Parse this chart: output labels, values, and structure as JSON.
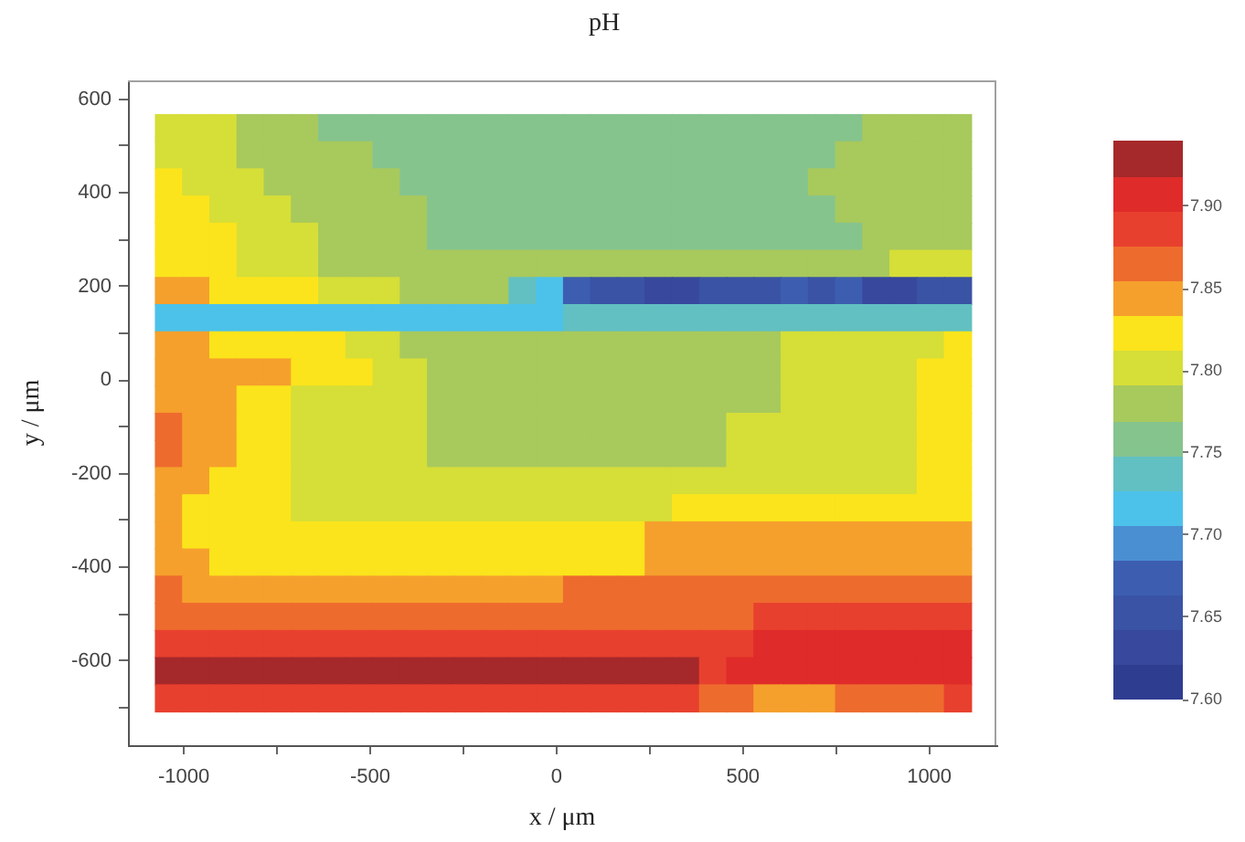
{
  "chart_data": {
    "type": "scatter",
    "title": "pH",
    "xlabel": "x / μm",
    "ylabel": "y / μm",
    "marker": "square",
    "xlim": [
      -1150,
      1180
    ],
    "xticks": [
      -1000,
      {
        "value": -750,
        "label": null
      },
      -500,
      {
        "value": -250,
        "label": null
      },
      0,
      {
        "value": 250,
        "label": null
      },
      500,
      {
        "value": 750,
        "label": null
      },
      1000
    ],
    "ylim": [
      -780,
      640
    ],
    "yticks": [
      {
        "value": -700,
        "label": null
      },
      -600,
      {
        "value": -500,
        "label": null
      },
      -400,
      {
        "value": -300,
        "label": null
      },
      -200,
      {
        "value": -100,
        "label": null
      },
      0,
      {
        "value": 100,
        "label": null
      },
      200,
      {
        "value": 300,
        "label": null
      },
      400,
      {
        "value": 500,
        "label": null
      },
      600
    ],
    "clim": [
      7.6,
      7.94
    ],
    "cticks": [
      {
        "value": 7.6,
        "label": "7.60"
      },
      7.65,
      {
        "value": 7.7,
        "label": "7.70"
      },
      7.75,
      {
        "value": 7.8,
        "label": "7.80"
      },
      7.85,
      {
        "value": 7.9,
        "label": "7.90"
      }
    ],
    "x": [
      -1040,
      -967,
      -894,
      -821,
      -748,
      -675,
      -602,
      -529,
      -456,
      -383,
      -310,
      -237,
      -164,
      -91,
      -18,
      55,
      128,
      201,
      274,
      347,
      420,
      493,
      566,
      639,
      712,
      785,
      858,
      931,
      1004,
      1077,
      -1040,
      -967,
      -894,
      -821,
      -748,
      -675,
      -602,
      -529,
      -456,
      -383,
      -310,
      -237,
      -164,
      -91,
      -18,
      55,
      128,
      201,
      274,
      347,
      420,
      493,
      566,
      639,
      712,
      785,
      858,
      931,
      1004,
      1077,
      -1040,
      -967,
      -894,
      -821,
      -748,
      -675,
      -602,
      -529,
      -456,
      -383,
      -310,
      -237,
      -164,
      -91,
      -18,
      55,
      128,
      201,
      274,
      347,
      420,
      493,
      566,
      639,
      712,
      785,
      858,
      931,
      1004,
      1077,
      -1040,
      -967,
      -894,
      -821,
      -748,
      -675,
      -602,
      -529,
      -456,
      -383,
      -310,
      -237,
      -164,
      -91,
      -18,
      55,
      128,
      201,
      274,
      347,
      420,
      493,
      566,
      639,
      712,
      785,
      858,
      931,
      1004,
      1077,
      -1040,
      -967,
      -894,
      -821,
      -748,
      -675,
      -602,
      -529,
      -456,
      -383,
      -310,
      -237,
      -164,
      -91,
      -18,
      55,
      128,
      201,
      274,
      347,
      420,
      493,
      566,
      639,
      712,
      785,
      858,
      931,
      1004,
      1077,
      -1040,
      -967,
      -894,
      -821,
      -748,
      -675,
      -602,
      -529,
      -456,
      -383,
      -310,
      -237,
      -164,
      -91,
      -18,
      55,
      128,
      201,
      274,
      347,
      420,
      493,
      566,
      639,
      712,
      785,
      858,
      931,
      1004,
      1077,
      -1040,
      -967,
      -894,
      -821,
      -748,
      -675,
      -602,
      -529,
      -456,
      -383,
      -310,
      -237,
      -164,
      -91,
      -18,
      55,
      128,
      201,
      274,
      347,
      420,
      493,
      566,
      639,
      712,
      785,
      858,
      931,
      1004,
      1077,
      -1040,
      -967,
      -894,
      -821,
      -748,
      -675,
      -602,
      -529,
      -456,
      -383,
      -310,
      -237,
      -164,
      -91,
      -18,
      55,
      128,
      201,
      274,
      347,
      420,
      493,
      566,
      639,
      712,
      785,
      858,
      931,
      1004,
      1077,
      -1040,
      -967,
      -894,
      -821,
      -748,
      -675,
      -602,
      -529,
      -456,
      -383,
      -310,
      -237,
      -164,
      -91,
      -18,
      55,
      128,
      201,
      274,
      347,
      420,
      493,
      566,
      639,
      712,
      785,
      858,
      931,
      1004,
      1077,
      -1040,
      -967,
      -894,
      -821,
      -748,
      -675,
      -602,
      -529,
      -456,
      -383,
      -310,
      -237,
      -164,
      -91,
      -18,
      55,
      128,
      201,
      274,
      347,
      420,
      493,
      566,
      639,
      712,
      785,
      858,
      931,
      1004,
      1077,
      -1040,
      -967,
      -894,
      -821,
      -748,
      -675,
      -602,
      -529,
      -456,
      -383,
      -310,
      -237,
      -164,
      -91,
      -18,
      55,
      128,
      201,
      274,
      347,
      420,
      493,
      566,
      639,
      712,
      785,
      858,
      931,
      1004,
      1077,
      -1040,
      -967,
      -894,
      -821,
      -748,
      -675,
      -602,
      -529,
      -456,
      -383,
      -310,
      -237,
      -164,
      -91,
      -18,
      55,
      128,
      201,
      274,
      347,
      420,
      493,
      566,
      639,
      712,
      785,
      858,
      931,
      1004,
      1077,
      -1040,
      -967,
      -894,
      -821,
      -748,
      -675,
      -602,
      -529,
      -456,
      -383,
      -310,
      -237,
      -164,
      -91,
      -18,
      55,
      128,
      201,
      274,
      347,
      420,
      493,
      566,
      639,
      712,
      785,
      858,
      931,
      1004,
      1077,
      -1040,
      -967,
      -894,
      -821,
      -748,
      -675,
      -602,
      -529,
      -456,
      -383,
      -310,
      -237,
      -164,
      -91,
      -18,
      55,
      128,
      201,
      274,
      347,
      420,
      493,
      566,
      639,
      712,
      785,
      858,
      931,
      1004,
      1077,
      -1040,
      -967,
      -894,
      -821,
      -748,
      -675,
      -602,
      -529,
      -456,
      -383,
      -310,
      -237,
      -164,
      -91,
      -18,
      55,
      128,
      201,
      274,
      347,
      420,
      493,
      566,
      639,
      712,
      785,
      858,
      931,
      1004,
      1077,
      -1040,
      -967,
      -894,
      -821,
      -748,
      -675,
      -602,
      -529,
      -456,
      -383,
      -310,
      -237,
      -164,
      -91,
      -18,
      55,
      128,
      201,
      274,
      347,
      420,
      493,
      566,
      639,
      712,
      785,
      858,
      931,
      1004,
      1077,
      -1040,
      -967,
      -894,
      -821,
      -748,
      -675,
      -602,
      -529,
      -456,
      -383,
      -310,
      -237,
      -164,
      -91,
      -18,
      55,
      128,
      201,
      274,
      347,
      420,
      493,
      566,
      639,
      712,
      785,
      858,
      931,
      1004,
      1077,
      -1040,
      -967,
      -894,
      -821,
      -748,
      -675,
      -602,
      -529,
      -456,
      -383,
      -310,
      -237,
      -164,
      -91,
      -18,
      55,
      128,
      201,
      274,
      347,
      420,
      493,
      566,
      639,
      712,
      785,
      858,
      931,
      1004,
      1077,
      -1040,
      -967,
      -894,
      -821,
      -748,
      -675,
      -602,
      -529,
      -456,
      -383,
      -310,
      -237,
      -164,
      -91,
      -18,
      55,
      128,
      201,
      274,
      347,
      420,
      493,
      566,
      639,
      712,
      785,
      858,
      931,
      1004,
      1077,
      -1040,
      -967,
      -894,
      -821,
      -748,
      -675,
      -602,
      -529,
      -456,
      -383,
      -310,
      -237,
      -164,
      -91,
      -18,
      55,
      128,
      201,
      274,
      347,
      420,
      493,
      566,
      639,
      712,
      785,
      858,
      931,
      1004,
      1077,
      -1040,
      -967,
      -894,
      -821,
      -748,
      -675,
      -602,
      -529,
      -456,
      -383,
      -310,
      -237,
      -164,
      -91,
      -18,
      55,
      128,
      201,
      274,
      347,
      420,
      493,
      566,
      639,
      712,
      785,
      858,
      931,
      1004,
      1077,
      -1040,
      -967,
      -894,
      -821,
      -748,
      -675,
      -602,
      -529,
      -456,
      -383,
      -310,
      -237,
      -164,
      -91,
      -18,
      55,
      128,
      201,
      274,
      347,
      420,
      493,
      566,
      639,
      712,
      785,
      858,
      931,
      1004,
      1077
    ],
    "values": [
      538,
      538,
      538,
      538,
      538,
      538,
      538,
      538,
      538,
      538,
      538,
      538,
      538,
      538,
      538,
      538,
      538,
      538,
      538,
      538,
      538,
      538,
      538,
      538,
      538,
      538,
      538,
      538,
      538,
      538,
      480,
      480,
      480,
      480,
      480,
      480,
      480,
      480,
      480,
      480,
      480,
      480,
      480,
      480,
      480,
      480,
      480,
      480,
      480,
      480,
      480,
      480,
      480,
      480,
      480,
      480,
      480,
      480,
      480,
      480,
      422,
      422,
      422,
      422,
      422,
      422,
      422,
      422,
      422,
      422,
      422,
      422,
      422,
      422,
      422,
      422,
      422,
      422,
      422,
      422,
      422,
      422,
      422,
      422,
      422,
      422,
      422,
      422,
      422,
      422,
      364,
      364,
      364,
      364,
      364,
      364,
      364,
      364,
      364,
      364,
      364,
      364,
      364,
      364,
      364,
      364,
      364,
      364,
      364,
      364,
      364,
      364,
      364,
      364,
      364,
      364,
      364,
      364,
      364,
      364,
      306,
      306,
      306,
      306,
      306,
      306,
      306,
      306,
      306,
      306,
      306,
      306,
      306,
      306,
      306,
      306,
      306,
      306,
      306,
      306,
      306,
      306,
      306,
      306,
      306,
      306,
      306,
      306,
      306,
      306,
      248,
      248,
      248,
      248,
      248,
      248,
      248,
      248,
      248,
      248,
      248,
      248,
      248,
      248,
      248,
      248,
      248,
      248,
      248,
      248,
      248,
      248,
      248,
      248,
      248,
      248,
      248,
      248,
      248,
      248,
      190,
      190,
      190,
      190,
      190,
      190,
      190,
      190,
      190,
      190,
      190,
      190,
      190,
      190,
      190,
      190,
      190,
      190,
      190,
      190,
      190,
      190,
      190,
      190,
      190,
      190,
      190,
      190,
      190,
      190,
      132,
      132,
      132,
      132,
      132,
      132,
      132,
      132,
      132,
      132,
      132,
      132,
      132,
      132,
      132,
      132,
      132,
      132,
      132,
      132,
      132,
      132,
      132,
      132,
      132,
      132,
      132,
      132,
      132,
      132,
      74,
      74,
      74,
      74,
      74,
      74,
      74,
      74,
      74,
      74,
      74,
      74,
      74,
      74,
      74,
      74,
      74,
      74,
      74,
      74,
      74,
      74,
      74,
      74,
      74,
      74,
      74,
      74,
      74,
      74,
      16,
      16,
      16,
      16,
      16,
      16,
      16,
      16,
      16,
      16,
      16,
      16,
      16,
      16,
      16,
      16,
      16,
      16,
      16,
      16,
      16,
      16,
      16,
      16,
      16,
      16,
      16,
      16,
      16,
      16,
      -42,
      -42,
      -42,
      -42,
      -42,
      -42,
      -42,
      -42,
      -42,
      -42,
      -42,
      -42,
      -42,
      -42,
      -42,
      -42,
      -42,
      -42,
      -42,
      -42,
      -42,
      -42,
      -42,
      -42,
      -42,
      -42,
      -42,
      -42,
      -42,
      -42,
      -100,
      -100,
      -100,
      -100,
      -100,
      -100,
      -100,
      -100,
      -100,
      -100,
      -100,
      -100,
      -100,
      -100,
      -100,
      -100,
      -100,
      -100,
      -100,
      -100,
      -100,
      -100,
      -100,
      -100,
      -100,
      -100,
      -100,
      -100,
      -100,
      -100,
      -158,
      -158,
      -158,
      -158,
      -158,
      -158,
      -158,
      -158,
      -158,
      -158,
      -158,
      -158,
      -158,
      -158,
      -158,
      -158,
      -158,
      -158,
      -158,
      -158,
      -158,
      -158,
      -158,
      -158,
      -158,
      -158,
      -158,
      -158,
      -158,
      -158,
      -216,
      -216,
      -216,
      -216,
      -216,
      -216,
      -216,
      -216,
      -216,
      -216,
      -216,
      -216,
      -216,
      -216,
      -216,
      -216,
      -216,
      -216,
      -216,
      -216,
      -216,
      -216,
      -216,
      -216,
      -216,
      -216,
      -216,
      -216,
      -216,
      -216,
      -274,
      -274,
      -274,
      -274,
      -274,
      -274,
      -274,
      -274,
      -274,
      -274,
      -274,
      -274,
      -274,
      -274,
      -274,
      -274,
      -274,
      -274,
      -274,
      -274,
      -274,
      -274,
      -274,
      -274,
      -274,
      -274,
      -274,
      -274,
      -274,
      -274,
      -332,
      -332,
      -332,
      -332,
      -332,
      -332,
      -332,
      -332,
      -332,
      -332,
      -332,
      -332,
      -332,
      -332,
      -332,
      -332,
      -332,
      -332,
      -332,
      -332,
      -332,
      -332,
      -332,
      -332,
      -332,
      -332,
      -332,
      -332,
      -332,
      -332,
      -390,
      -390,
      -390,
      -390,
      -390,
      -390,
      -390,
      -390,
      -390,
      -390,
      -390,
      -390,
      -390,
      -390,
      -390,
      -390,
      -390,
      -390,
      -390,
      -390,
      -390,
      -390,
      -390,
      -390,
      -390,
      -390,
      -390,
      -390,
      -390,
      -390,
      -448,
      -448,
      -448,
      -448,
      -448,
      -448,
      -448,
      -448,
      -448,
      -448,
      -448,
      -448,
      -448,
      -448,
      -448,
      -448,
      -448,
      -448,
      -448,
      -448,
      -448,
      -448,
      -448,
      -448,
      -448,
      -448,
      -448,
      -448,
      -448,
      -448,
      -506,
      -506,
      -506,
      -506,
      -506,
      -506,
      -506,
      -506,
      -506,
      -506,
      -506,
      -506,
      -506,
      -506,
      -506,
      -506,
      -506,
      -506,
      -506,
      -506,
      -506,
      -506,
      -506,
      -506,
      -506,
      -506,
      -506,
      -506,
      -506,
      -506,
      -564,
      -564,
      -564,
      -564,
      -564,
      -564,
      -564,
      -564,
      -564,
      -564,
      -564,
      -564,
      -564,
      -564,
      -564,
      -564,
      -564,
      -564,
      -564,
      -564,
      -564,
      -564,
      -564,
      -564,
      -564,
      -564,
      -564,
      -564,
      -564,
      -564,
      -622,
      -622,
      -622,
      -622,
      -622,
      -622,
      -622,
      -622,
      -622,
      -622,
      -622,
      -622,
      -622,
      -622,
      -622,
      -622,
      -622,
      -622,
      -622,
      -622,
      -622,
      -622,
      -622,
      -622,
      -622,
      -622,
      -622,
      -622,
      -622,
      -622,
      -680,
      -680,
      -680,
      -680,
      -680,
      -680,
      -680,
      -680,
      -680,
      -680,
      -680,
      -680,
      -680,
      -680,
      -680,
      -680,
      -680,
      -680,
      -680,
      -680,
      -680,
      -680,
      -680,
      -680,
      -680,
      -680,
      -680,
      -680,
      -680,
      -680
    ],
    "cvalues": [
      7.8,
      7.8,
      7.8,
      7.78,
      7.78,
      7.78,
      7.76,
      7.76,
      7.76,
      7.76,
      7.76,
      7.76,
      7.76,
      7.76,
      7.76,
      7.76,
      7.76,
      7.76,
      7.76,
      7.76,
      7.76,
      7.76,
      7.76,
      7.76,
      7.76,
      7.76,
      7.78,
      7.78,
      7.78,
      7.78,
      7.8,
      7.8,
      7.8,
      7.78,
      7.78,
      7.78,
      7.78,
      7.78,
      7.76,
      7.76,
      7.76,
      7.76,
      7.76,
      7.76,
      7.76,
      7.76,
      7.76,
      7.76,
      7.76,
      7.76,
      7.76,
      7.76,
      7.76,
      7.76,
      7.76,
      7.78,
      7.78,
      7.78,
      7.78,
      7.78,
      7.82,
      7.8,
      7.8,
      7.8,
      7.78,
      7.78,
      7.78,
      7.78,
      7.78,
      7.76,
      7.76,
      7.76,
      7.76,
      7.76,
      7.76,
      7.76,
      7.76,
      7.76,
      7.76,
      7.76,
      7.76,
      7.76,
      7.76,
      7.76,
      7.78,
      7.78,
      7.78,
      7.78,
      7.78,
      7.78,
      7.82,
      7.82,
      7.8,
      7.8,
      7.8,
      7.78,
      7.78,
      7.78,
      7.78,
      7.78,
      7.76,
      7.76,
      7.76,
      7.76,
      7.76,
      7.76,
      7.76,
      7.76,
      7.76,
      7.76,
      7.76,
      7.76,
      7.76,
      7.76,
      7.76,
      7.78,
      7.78,
      7.78,
      7.78,
      7.78,
      7.82,
      7.82,
      7.82,
      7.8,
      7.8,
      7.8,
      7.78,
      7.78,
      7.78,
      7.78,
      7.76,
      7.76,
      7.76,
      7.76,
      7.76,
      7.76,
      7.76,
      7.76,
      7.76,
      7.76,
      7.76,
      7.76,
      7.76,
      7.76,
      7.76,
      7.76,
      7.78,
      7.78,
      7.78,
      7.78,
      7.82,
      7.82,
      7.82,
      7.8,
      7.8,
      7.8,
      7.78,
      7.78,
      7.78,
      7.78,
      7.78,
      7.78,
      7.78,
      7.78,
      7.78,
      7.78,
      7.78,
      7.78,
      7.78,
      7.78,
      7.78,
      7.78,
      7.78,
      7.78,
      7.78,
      7.78,
      7.78,
      7.8,
      7.8,
      7.8,
      7.84,
      7.84,
      7.82,
      7.82,
      7.82,
      7.82,
      7.8,
      7.8,
      7.8,
      7.78,
      7.78,
      7.78,
      7.78,
      7.74,
      7.72,
      7.67,
      7.65,
      7.65,
      7.63,
      7.63,
      7.65,
      7.65,
      7.65,
      7.67,
      7.65,
      7.67,
      7.63,
      7.63,
      7.65,
      7.65,
      7.72,
      7.72,
      7.72,
      7.72,
      7.72,
      7.72,
      7.72,
      7.72,
      7.72,
      7.72,
      7.72,
      7.72,
      7.72,
      7.72,
      7.72,
      7.74,
      7.74,
      7.74,
      7.74,
      7.74,
      7.74,
      7.74,
      7.74,
      7.74,
      7.74,
      7.74,
      7.74,
      7.74,
      7.74,
      7.74,
      7.84,
      7.84,
      7.82,
      7.82,
      7.82,
      7.82,
      7.82,
      7.8,
      7.8,
      7.78,
      7.78,
      7.78,
      7.78,
      7.78,
      7.78,
      7.78,
      7.78,
      7.78,
      7.78,
      7.78,
      7.78,
      7.78,
      7.78,
      7.8,
      7.8,
      7.8,
      7.8,
      7.8,
      7.8,
      7.82,
      7.84,
      7.84,
      7.84,
      7.84,
      7.84,
      7.82,
      7.82,
      7.82,
      7.8,
      7.8,
      7.78,
      7.78,
      7.78,
      7.78,
      7.78,
      7.78,
      7.78,
      7.78,
      7.78,
      7.78,
      7.78,
      7.78,
      7.78,
      7.8,
      7.8,
      7.8,
      7.8,
      7.8,
      7.82,
      7.82,
      7.84,
      7.84,
      7.84,
      7.82,
      7.82,
      7.8,
      7.8,
      7.8,
      7.8,
      7.8,
      7.78,
      7.78,
      7.78,
      7.78,
      7.78,
      7.78,
      7.78,
      7.78,
      7.78,
      7.78,
      7.78,
      7.78,
      7.78,
      7.8,
      7.8,
      7.8,
      7.8,
      7.8,
      7.82,
      7.82,
      7.87,
      7.84,
      7.84,
      7.82,
      7.82,
      7.8,
      7.8,
      7.8,
      7.8,
      7.8,
      7.78,
      7.78,
      7.78,
      7.78,
      7.78,
      7.78,
      7.78,
      7.78,
      7.78,
      7.78,
      7.78,
      7.8,
      7.8,
      7.8,
      7.8,
      7.8,
      7.8,
      7.8,
      7.82,
      7.82,
      7.87,
      7.84,
      7.84,
      7.82,
      7.82,
      7.8,
      7.8,
      7.8,
      7.8,
      7.8,
      7.78,
      7.78,
      7.78,
      7.78,
      7.78,
      7.78,
      7.78,
      7.78,
      7.78,
      7.78,
      7.78,
      7.8,
      7.8,
      7.8,
      7.8,
      7.8,
      7.8,
      7.8,
      7.82,
      7.82,
      7.84,
      7.84,
      7.82,
      7.82,
      7.82,
      7.8,
      7.8,
      7.8,
      7.8,
      7.8,
      7.8,
      7.8,
      7.8,
      7.8,
      7.8,
      7.8,
      7.8,
      7.8,
      7.8,
      7.8,
      7.8,
      7.8,
      7.8,
      7.8,
      7.8,
      7.8,
      7.8,
      7.8,
      7.82,
      7.82,
      7.84,
      7.82,
      7.82,
      7.82,
      7.82,
      7.8,
      7.8,
      7.8,
      7.8,
      7.8,
      7.8,
      7.8,
      7.8,
      7.8,
      7.8,
      7.8,
      7.8,
      7.8,
      7.8,
      7.82,
      7.82,
      7.82,
      7.82,
      7.82,
      7.82,
      7.82,
      7.82,
      7.82,
      7.82,
      7.82,
      7.84,
      7.82,
      7.82,
      7.82,
      7.82,
      7.82,
      7.82,
      7.82,
      7.82,
      7.82,
      7.82,
      7.82,
      7.82,
      7.82,
      7.82,
      7.82,
      7.82,
      7.82,
      7.84,
      7.84,
      7.84,
      7.84,
      7.84,
      7.84,
      7.84,
      7.84,
      7.84,
      7.84,
      7.84,
      7.84,
      7.84,
      7.84,
      7.82,
      7.82,
      7.82,
      7.82,
      7.82,
      7.82,
      7.82,
      7.82,
      7.82,
      7.82,
      7.82,
      7.82,
      7.82,
      7.82,
      7.82,
      7.82,
      7.84,
      7.84,
      7.84,
      7.84,
      7.84,
      7.84,
      7.84,
      7.84,
      7.84,
      7.84,
      7.84,
      7.84,
      7.87,
      7.84,
      7.84,
      7.84,
      7.84,
      7.84,
      7.84,
      7.84,
      7.84,
      7.84,
      7.84,
      7.84,
      7.84,
      7.84,
      7.84,
      7.87,
      7.87,
      7.87,
      7.87,
      7.87,
      7.87,
      7.87,
      7.87,
      7.87,
      7.87,
      7.87,
      7.87,
      7.87,
      7.87,
      7.87,
      7.87,
      7.87,
      7.87,
      7.87,
      7.87,
      7.87,
      7.87,
      7.87,
      7.87,
      7.87,
      7.87,
      7.87,
      7.87,
      7.87,
      7.87,
      7.87,
      7.87,
      7.87,
      7.87,
      7.87,
      7.87,
      7.87,
      7.89,
      7.89,
      7.89,
      7.89,
      7.89,
      7.89,
      7.89,
      7.89,
      7.89,
      7.89,
      7.89,
      7.89,
      7.89,
      7.89,
      7.89,
      7.89,
      7.89,
      7.89,
      7.89,
      7.89,
      7.89,
      7.89,
      7.89,
      7.89,
      7.89,
      7.89,
      7.89,
      7.89,
      7.89,
      7.89,
      7.91,
      7.91,
      7.91,
      7.91,
      7.91,
      7.91,
      7.91,
      7.91,
      7.93,
      7.93,
      7.93,
      7.93,
      7.93,
      7.93,
      7.93,
      7.93,
      7.93,
      7.93,
      7.93,
      7.93,
      7.93,
      7.93,
      7.93,
      7.93,
      7.93,
      7.93,
      7.93,
      7.93,
      7.89,
      7.91,
      7.91,
      7.91,
      7.91,
      7.91,
      7.91,
      7.91,
      7.91,
      7.91,
      7.89,
      7.89,
      7.89,
      7.89,
      7.89,
      7.89,
      7.89,
      7.89,
      7.89,
      7.89,
      7.89,
      7.89,
      7.89,
      7.89,
      7.89,
      7.89,
      7.89,
      7.89,
      7.89,
      7.89,
      7.87,
      7.87,
      7.84,
      7.84,
      7.84,
      7.87,
      7.87,
      7.87,
      7.87,
      7.89
    ]
  }
}
